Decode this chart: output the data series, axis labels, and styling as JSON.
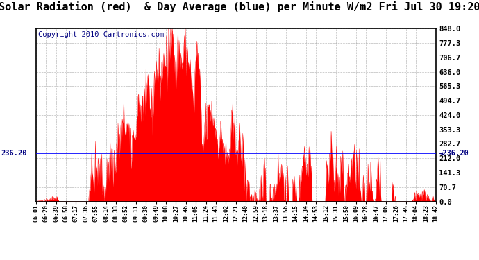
{
  "title": "Solar Radiation (red)  & Day Average (blue) per Minute W/m2 Fri Jul 30 19:20",
  "copyright": "Copyright 2010 Cartronics.com",
  "y_max": 848.0,
  "y_min": 0.0,
  "y_ticks": [
    0.0,
    70.7,
    141.3,
    212.0,
    282.7,
    353.3,
    424.0,
    494.7,
    565.3,
    636.0,
    706.7,
    777.3,
    848.0
  ],
  "day_average": 236.2,
  "fill_color": "red",
  "avg_line_color": "blue",
  "background_color": "#ffffff",
  "plot_bg_color": "#ffffff",
  "grid_color": "#aaaaaa",
  "x_tick_labels": [
    "06:01",
    "06:20",
    "06:39",
    "06:58",
    "07:17",
    "07:36",
    "07:55",
    "08:14",
    "08:33",
    "08:52",
    "09:11",
    "09:30",
    "09:49",
    "10:08",
    "10:27",
    "10:46",
    "11:05",
    "11:24",
    "11:43",
    "12:02",
    "12:21",
    "12:40",
    "12:59",
    "13:18",
    "13:37",
    "13:56",
    "14:15",
    "14:34",
    "14:53",
    "15:12",
    "15:31",
    "15:50",
    "16:09",
    "16:28",
    "16:47",
    "17:06",
    "17:26",
    "17:45",
    "18:04",
    "18:23",
    "18:42"
  ],
  "title_fontsize": 11,
  "copyright_fontsize": 7.5
}
